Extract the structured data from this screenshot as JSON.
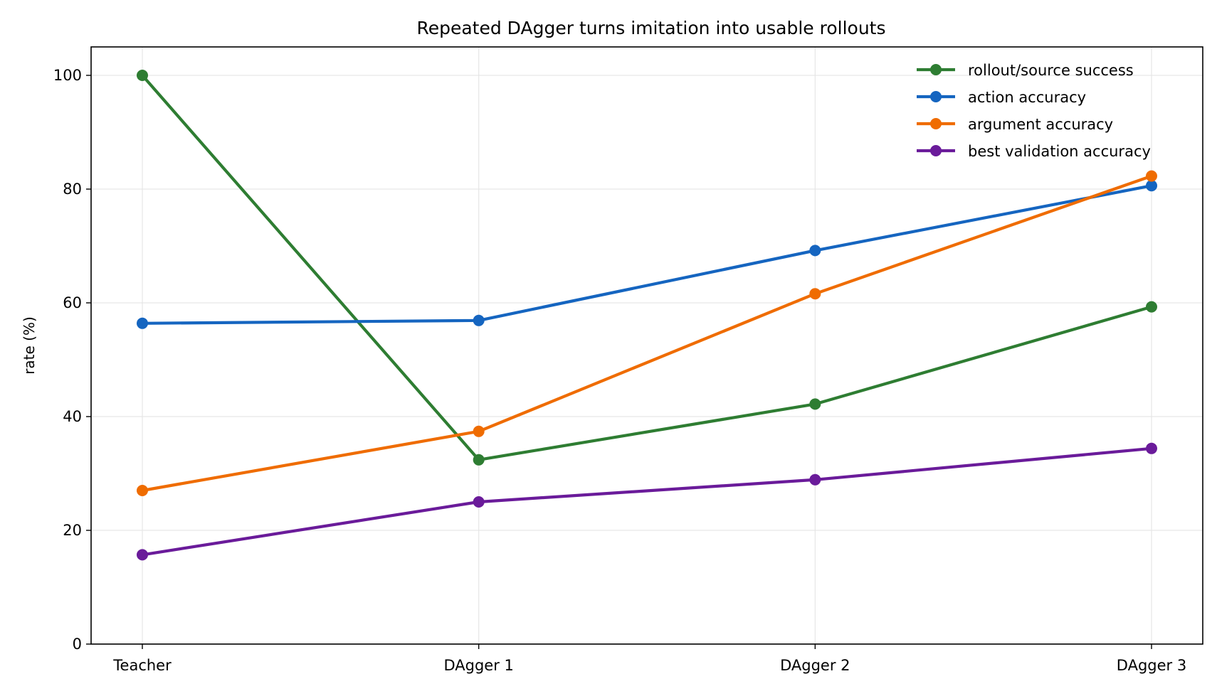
{
  "chart_data": {
    "type": "line",
    "title": "Repeated DAgger turns imitation into usable rollouts",
    "xlabel": "",
    "ylabel": "rate (%)",
    "categories": [
      "Teacher",
      "DAgger 1",
      "DAgger 2",
      "DAgger 3"
    ],
    "ylim": [
      0,
      105
    ],
    "yticks": [
      0,
      20,
      40,
      60,
      80,
      100
    ],
    "grid": true,
    "legend_position": "top-right",
    "series": [
      {
        "name": "rollout/source success",
        "color": "#2e7d32",
        "values": [
          100.0,
          32.4,
          42.2,
          59.3
        ]
      },
      {
        "name": "action accuracy",
        "color": "#1565c0",
        "values": [
          56.4,
          56.9,
          69.2,
          80.6
        ]
      },
      {
        "name": "argument accuracy",
        "color": "#ef6c00",
        "values": [
          27.0,
          37.4,
          61.6,
          82.3
        ]
      },
      {
        "name": "best validation accuracy",
        "color": "#6a1b9a",
        "values": [
          15.7,
          25.0,
          28.9,
          34.4
        ]
      }
    ]
  }
}
